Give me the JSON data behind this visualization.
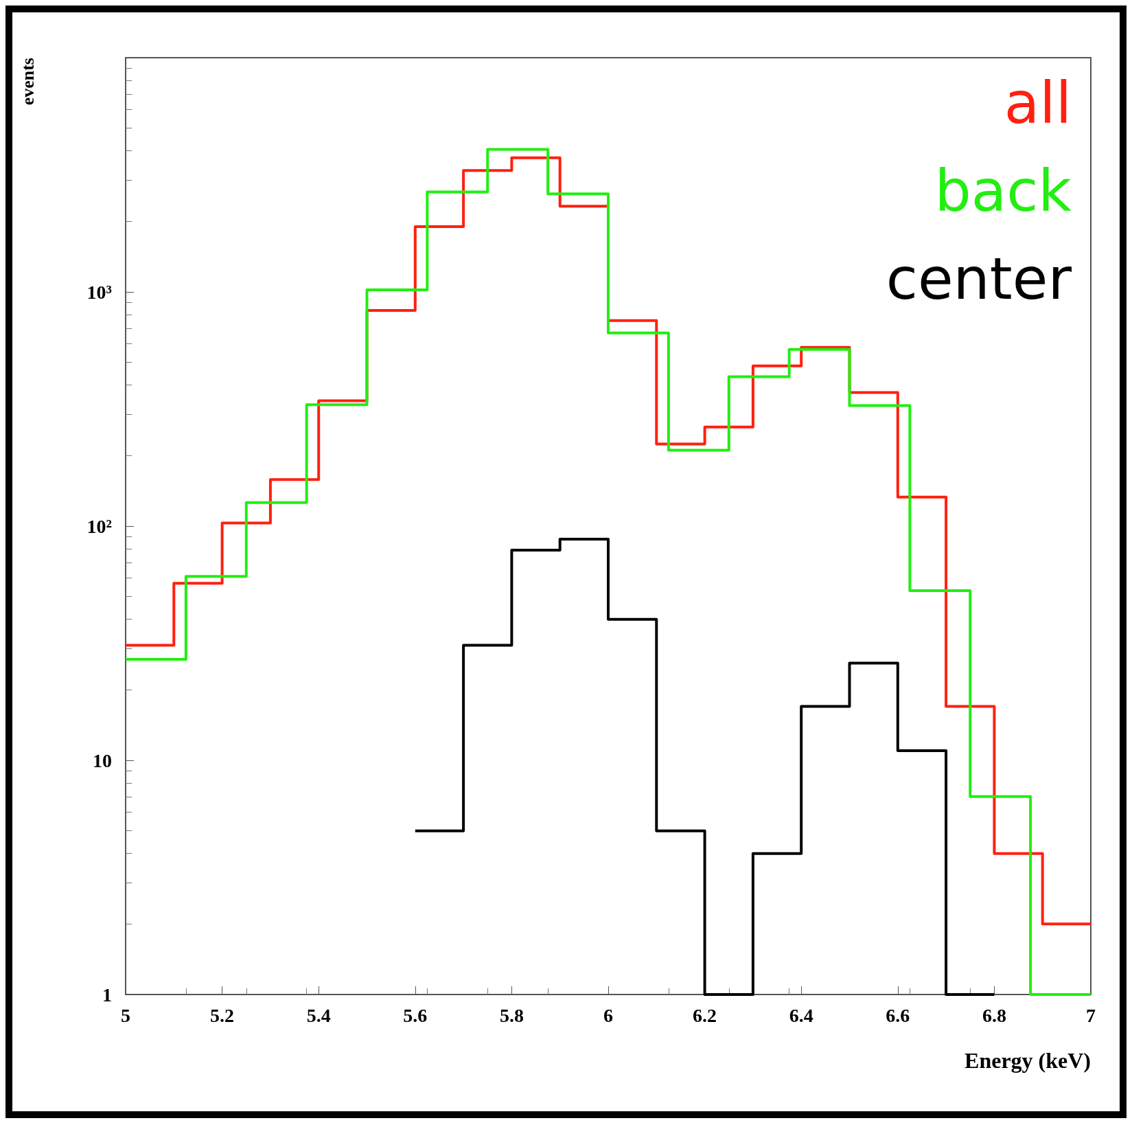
{
  "chart_data": {
    "type": "step",
    "xlabel": "Energy (keV)",
    "ylabel": "events",
    "log": "y",
    "xlim": [
      5,
      7
    ],
    "xticks": [
      5,
      5.2,
      5.4,
      5.6,
      5.8,
      6,
      6.2,
      6.4,
      6.6,
      6.8,
      7
    ],
    "ylim": [
      1,
      10000
    ],
    "yticks": [
      1,
      10,
      {
        "value": 100,
        "label": "10²"
      },
      {
        "value": 1000,
        "label": "10³"
      }
    ],
    "grid": false,
    "series": [
      {
        "name": "all",
        "color": "#ff2010",
        "x": [
          5,
          5.1,
          5.2,
          5.3,
          5.4,
          5.5,
          5.6,
          5.7,
          5.8,
          5.9,
          6,
          6.1,
          6.2,
          6.3,
          6.4,
          6.5,
          6.6,
          6.7,
          6.8,
          6.9,
          7
        ],
        "values": [
          31,
          57,
          103,
          158,
          343,
          834,
          1900,
          3300,
          3740,
          2320,
          754,
          224,
          265,
          483,
          580,
          372,
          133,
          17,
          4,
          2,
          2
        ]
      },
      {
        "name": "back",
        "color": "#22ee11",
        "x": [
          5,
          5.125,
          5.25,
          5.375,
          5.5,
          5.625,
          5.75,
          5.875,
          6,
          6.125,
          6.25,
          6.375,
          6.5,
          6.625,
          6.75,
          6.875,
          7
        ],
        "values": [
          27,
          61,
          126,
          330,
          1020,
          2670,
          4060,
          2620,
          668,
          211,
          434,
          568,
          327,
          53,
          7,
          1,
          1
        ]
      },
      {
        "name": "center",
        "color": "#000000",
        "x": [
          5.6,
          5.7,
          5.8,
          5.9,
          6,
          6.1,
          6.2,
          6.3,
          6.4,
          6.5,
          6.6,
          6.7,
          6.8
        ],
        "values": [
          5,
          31,
          79,
          88,
          40,
          5,
          1,
          4,
          17,
          26,
          11,
          1,
          1
        ]
      }
    ]
  }
}
